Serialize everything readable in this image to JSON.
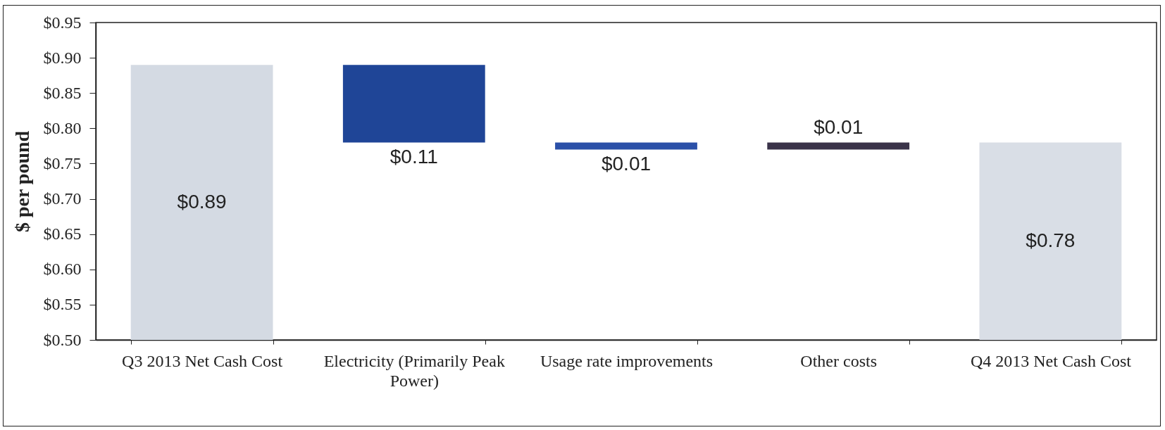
{
  "chart_data": {
    "type": "bar",
    "ylabel": "$ per pound",
    "categories": [
      "Q3 2013 Net Cash Cost",
      "Electricity (Primarily Peak Power)",
      "Usage rate improvements",
      "Other costs",
      "Q4 2013 Net Cash Cost"
    ],
    "values": [
      0.89,
      -0.11,
      -0.01,
      0.01,
      0.78
    ],
    "base": [
      null,
      0.89,
      0.78,
      0.77,
      null
    ],
    "colors": [
      "#d4dae3",
      "#1f4597",
      "#2b50a8",
      "#3a3349",
      "#d9dee6"
    ],
    "value_labels": [
      "$0.89",
      "$0.11",
      "$0.01",
      "$0.01",
      "$0.78"
    ],
    "ylim": [
      0.5,
      0.95
    ],
    "yticks": [
      {
        "value": 0.5,
        "label": "$0.50"
      },
      {
        "value": 0.55,
        "label": "$0.55"
      },
      {
        "value": 0.6,
        "label": "$0.60"
      },
      {
        "value": 0.65,
        "label": "$0.65"
      },
      {
        "value": 0.7,
        "label": "$0.70"
      },
      {
        "value": 0.75,
        "label": "$0.75"
      },
      {
        "value": 0.8,
        "label": "$0.80"
      },
      {
        "value": 0.85,
        "label": "$0.85"
      },
      {
        "value": 0.9,
        "label": "$0.90"
      },
      {
        "value": 0.95,
        "label": "$0.95"
      }
    ],
    "grid": false
  }
}
